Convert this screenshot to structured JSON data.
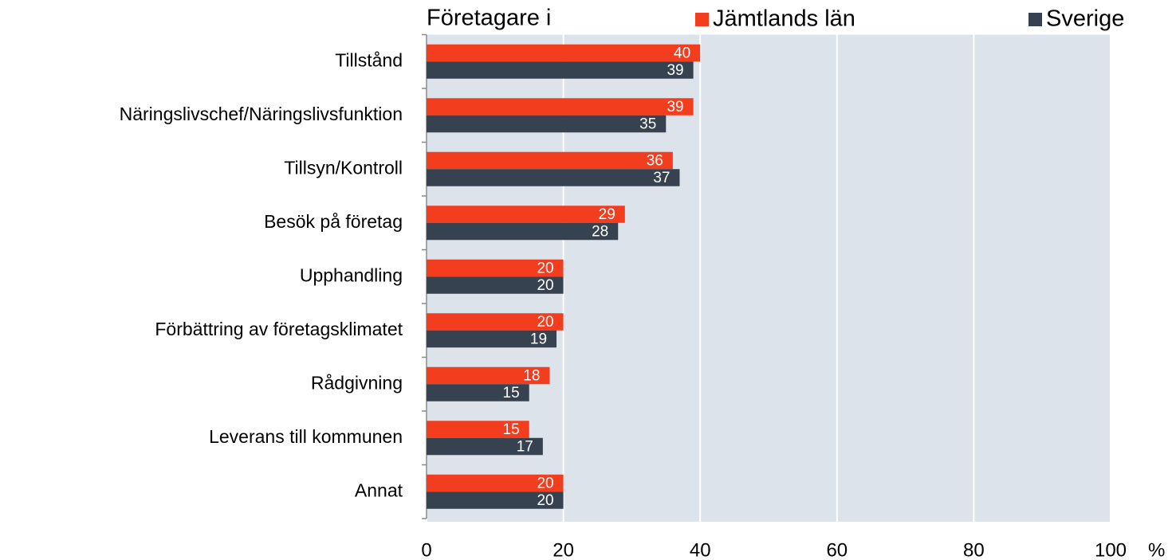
{
  "chart_data": {
    "type": "hbar",
    "title": "Företagare i",
    "categories": [
      "Tillstånd",
      "Näringslivschef/Näringslivsfunktion",
      "Tillsyn/Kontroll",
      "Besök på företag",
      "Upphandling",
      "Förbättring av företagsklimatet",
      "Rådgivning",
      "Leverans till kommunen",
      "Annat"
    ],
    "series": [
      {
        "name": "Jämtlands län",
        "color": "#f23d1f",
        "values": [
          40,
          39,
          36,
          29,
          20,
          20,
          18,
          15,
          20
        ]
      },
      {
        "name": "Sverige",
        "color": "#36424f",
        "values": [
          39,
          35,
          37,
          28,
          20,
          19,
          15,
          17,
          20
        ]
      }
    ],
    "x_label": "%",
    "xlim": [
      0,
      100
    ],
    "xticks": [
      0,
      20,
      40,
      60,
      80,
      100
    ],
    "grid": true,
    "legend": "top",
    "data_labels": true
  }
}
